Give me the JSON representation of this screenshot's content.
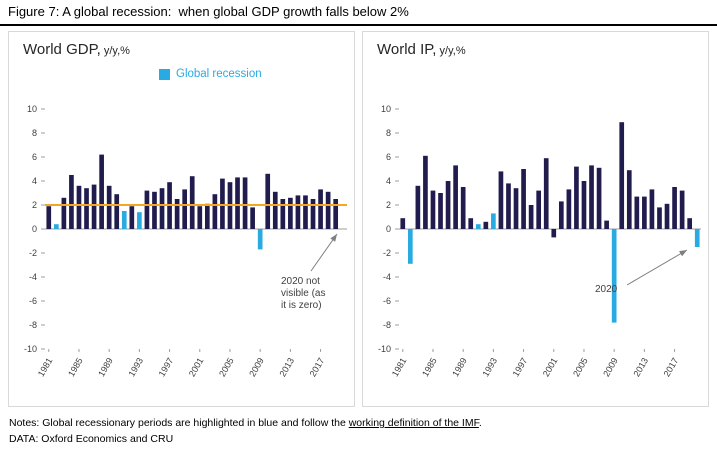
{
  "figure": {
    "title": "Figure 7: A global recession:  when global GDP growth falls below 2%"
  },
  "legend": {
    "label": "Global recession",
    "color": "#29ABE2"
  },
  "colors": {
    "bar": "#211C4E",
    "recession": "#29ABE2",
    "threshold": "#F5A623",
    "axis": "#9c9c9c",
    "tick_text": "#404040"
  },
  "footer": {
    "notes_prefix": "Notes: Global recessionary periods are highlighted in blue and follow the ",
    "notes_link": "working definition of the IMF",
    "notes_suffix": ".",
    "data_source": "DATA: Oxford Economics and CRU"
  },
  "chart_data": [
    {
      "type": "bar",
      "title": "World GDP,",
      "title_suffix": " y/y,%",
      "ylim": [
        -10,
        10
      ],
      "ytick_step": 2,
      "grid": false,
      "legend_position": "top-center",
      "threshold": 2,
      "years": [
        1981,
        1982,
        1983,
        1984,
        1985,
        1986,
        1987,
        1988,
        1989,
        1990,
        1991,
        1992,
        1993,
        1994,
        1995,
        1996,
        1997,
        1998,
        1999,
        2000,
        2001,
        2002,
        2003,
        2004,
        2005,
        2006,
        2007,
        2008,
        2009,
        2010,
        2011,
        2012,
        2013,
        2014,
        2015,
        2016,
        2017,
        2018,
        2019,
        2020
      ],
      "values": [
        1.9,
        0.4,
        2.6,
        4.5,
        3.6,
        3.4,
        3.7,
        6.2,
        3.6,
        2.9,
        1.5,
        1.9,
        1.4,
        3.2,
        3.1,
        3.4,
        3.9,
        2.5,
        3.3,
        4.4,
        1.9,
        2.1,
        2.9,
        4.2,
        3.9,
        4.3,
        4.3,
        1.8,
        -1.7,
        4.6,
        3.1,
        2.5,
        2.6,
        2.8,
        2.8,
        2.5,
        3.3,
        3.1,
        2.5,
        0
      ],
      "recession_years": [
        1982,
        1991,
        1993,
        2009,
        2020
      ],
      "xtick_years": [
        1981,
        1985,
        1989,
        1993,
        1997,
        2001,
        2005,
        2009,
        2013,
        2017
      ],
      "annotation": "2020 not visible (as it is zero)"
    },
    {
      "type": "bar",
      "title": "World IP,",
      "title_suffix": " y/y,%",
      "ylim": [
        -10,
        10
      ],
      "ytick_step": 2,
      "grid": false,
      "threshold": null,
      "years": [
        1981,
        1982,
        1983,
        1984,
        1985,
        1986,
        1987,
        1988,
        1989,
        1990,
        1991,
        1992,
        1993,
        1994,
        1995,
        1996,
        1997,
        1998,
        1999,
        2000,
        2001,
        2002,
        2003,
        2004,
        2005,
        2006,
        2007,
        2008,
        2009,
        2010,
        2011,
        2012,
        2013,
        2014,
        2015,
        2016,
        2017,
        2018,
        2019,
        2020
      ],
      "values": [
        0.9,
        -2.9,
        3.6,
        6.1,
        3.2,
        3.0,
        4.0,
        5.3,
        3.5,
        0.9,
        0.4,
        0.6,
        1.3,
        4.8,
        3.8,
        3.4,
        5.0,
        2.0,
        3.2,
        5.9,
        -0.7,
        2.3,
        3.3,
        5.2,
        4.0,
        5.3,
        5.1,
        0.7,
        -7.8,
        8.9,
        4.9,
        2.7,
        2.7,
        3.3,
        1.8,
        2.1,
        3.5,
        3.2,
        0.9,
        -1.5
      ],
      "recession_years": [
        1982,
        1991,
        1993,
        2009,
        2020
      ],
      "xtick_years": [
        1981,
        1985,
        1989,
        1993,
        1997,
        2001,
        2005,
        2009,
        2013,
        2017
      ],
      "annotation": "2020"
    }
  ]
}
